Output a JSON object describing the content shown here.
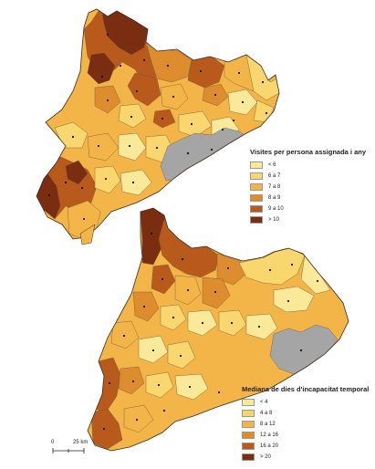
{
  "maps": [
    {
      "legend_title": "Visites per persona assignada i any",
      "classes": [
        {
          "label": "< 6",
          "color": "#fbe99a"
        },
        {
          "label": "6 a 7",
          "color": "#fad66f"
        },
        {
          "label": "7 a 8",
          "color": "#f3b547"
        },
        {
          "label": "8 a 9",
          "color": "#de8d2e"
        },
        {
          "label": "9 a 10",
          "color": "#b85a1c"
        },
        {
          "label": "> 10",
          "color": "#7a2d10"
        }
      ]
    },
    {
      "legend_title": "Mediana de dies d'incapacitat temporal",
      "classes": [
        {
          "label": "< 4",
          "color": "#fbe99a"
        },
        {
          "label": "4 a 8",
          "color": "#fad66f"
        },
        {
          "label": "8 a 12",
          "color": "#f3b547"
        },
        {
          "label": "12 a 16",
          "color": "#de8d2e"
        },
        {
          "label": "16 a 20",
          "color": "#b85a1c"
        },
        {
          "label": "> 20",
          "color": "#7a2d10"
        }
      ]
    }
  ],
  "no_data_color": "#a5a5a5",
  "scale_bar": {
    "start_label": "0",
    "end_label": "25 km"
  }
}
